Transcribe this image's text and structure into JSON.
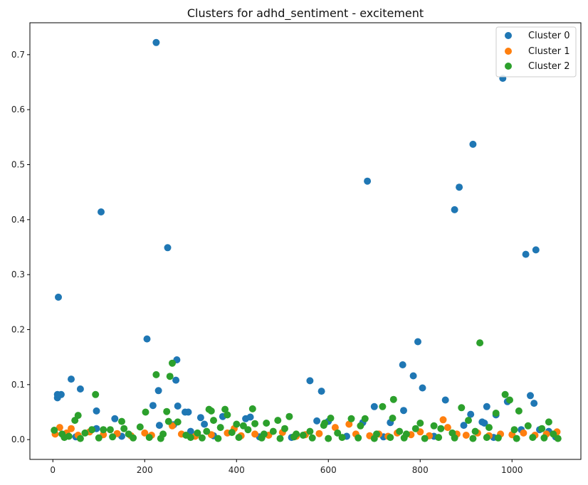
{
  "chart_data": {
    "type": "scatter",
    "title": "Clusters for adhd_sentiment - excitement",
    "xlabel": "",
    "ylabel": "",
    "xlim": [
      -50,
      1150
    ],
    "ylim": [
      -0.036,
      0.758
    ],
    "x_ticks": [
      0,
      200,
      400,
      600,
      800,
      1000
    ],
    "y_ticks": [
      0.0,
      0.1,
      0.2,
      0.3,
      0.4,
      0.5,
      0.6,
      0.7
    ],
    "x_tick_labels": [
      "0",
      "200",
      "400",
      "600",
      "800",
      "1000"
    ],
    "y_tick_labels": [
      "0.0",
      "0.1",
      "0.2",
      "0.3",
      "0.4",
      "0.5",
      "0.6",
      "0.7"
    ],
    "grid": false,
    "legend_position": "top-right",
    "series": [
      {
        "name": "Cluster 0",
        "color": "#1f77b4",
        "points": [
          [
            10,
            0.076
          ],
          [
            10,
            0.082
          ],
          [
            12,
            0.259
          ],
          [
            18,
            0.082
          ],
          [
            40,
            0.11
          ],
          [
            60,
            0.092
          ],
          [
            95,
            0.052
          ],
          [
            95,
            0.02
          ],
          [
            105,
            0.414
          ],
          [
            135,
            0.038
          ],
          [
            205,
            0.183
          ],
          [
            218,
            0.062
          ],
          [
            225,
            0.722
          ],
          [
            230,
            0.089
          ],
          [
            232,
            0.026
          ],
          [
            250,
            0.349
          ],
          [
            263,
            0.027
          ],
          [
            268,
            0.108
          ],
          [
            270,
            0.145
          ],
          [
            272,
            0.061
          ],
          [
            288,
            0.05
          ],
          [
            295,
            0.05
          ],
          [
            300,
            0.015
          ],
          [
            322,
            0.04
          ],
          [
            330,
            0.028
          ],
          [
            370,
            0.042
          ],
          [
            420,
            0.038
          ],
          [
            430,
            0.041
          ],
          [
            560,
            0.107
          ],
          [
            575,
            0.034
          ],
          [
            585,
            0.088
          ],
          [
            600,
            0.033
          ],
          [
            675,
            0.031
          ],
          [
            685,
            0.47
          ],
          [
            700,
            0.06
          ],
          [
            735,
            0.031
          ],
          [
            762,
            0.136
          ],
          [
            764,
            0.053
          ],
          [
            785,
            0.116
          ],
          [
            795,
            0.178
          ],
          [
            805,
            0.094
          ],
          [
            855,
            0.072
          ],
          [
            875,
            0.418
          ],
          [
            885,
            0.459
          ],
          [
            895,
            0.026
          ],
          [
            910,
            0.046
          ],
          [
            915,
            0.537
          ],
          [
            935,
            0.032
          ],
          [
            940,
            0.03
          ],
          [
            945,
            0.06
          ],
          [
            965,
            0.045
          ],
          [
            980,
            0.657
          ],
          [
            990,
            0.069
          ],
          [
            1020,
            0.018
          ],
          [
            1030,
            0.337
          ],
          [
            1040,
            0.08
          ],
          [
            1048,
            0.066
          ],
          [
            1052,
            0.345
          ],
          [
            1060,
            0.018
          ],
          [
            1080,
            0.015
          ],
          [
            50,
            0.005
          ],
          [
            150,
            0.006
          ],
          [
            350,
            0.007
          ],
          [
            450,
            0.005
          ],
          [
            520,
            0.004
          ],
          [
            640,
            0.006
          ],
          [
            720,
            0.005
          ],
          [
            830,
            0.006
          ],
          [
            960,
            0.004
          ],
          [
            1095,
            0.005
          ]
        ]
      },
      {
        "name": "Cluster 1",
        "color": "#ff7f0e",
        "points": [
          [
            5,
            0.01
          ],
          [
            15,
            0.022
          ],
          [
            30,
            0.012
          ],
          [
            40,
            0.02
          ],
          [
            55,
            0.008
          ],
          [
            80,
            0.014
          ],
          [
            110,
            0.009
          ],
          [
            140,
            0.011
          ],
          [
            170,
            0.007
          ],
          [
            200,
            0.012
          ],
          [
            215,
            0.008
          ],
          [
            260,
            0.025
          ],
          [
            280,
            0.01
          ],
          [
            310,
            0.006
          ],
          [
            345,
            0.009
          ],
          [
            380,
            0.012
          ],
          [
            395,
            0.02
          ],
          [
            410,
            0.007
          ],
          [
            440,
            0.01
          ],
          [
            470,
            0.008
          ],
          [
            500,
            0.013
          ],
          [
            530,
            0.006
          ],
          [
            550,
            0.009
          ],
          [
            580,
            0.011
          ],
          [
            615,
            0.022
          ],
          [
            645,
            0.028
          ],
          [
            660,
            0.01
          ],
          [
            690,
            0.007
          ],
          [
            710,
            0.01
          ],
          [
            730,
            0.006
          ],
          [
            750,
            0.012
          ],
          [
            780,
            0.009
          ],
          [
            800,
            0.014
          ],
          [
            820,
            0.007
          ],
          [
            850,
            0.036
          ],
          [
            860,
            0.022
          ],
          [
            880,
            0.01
          ],
          [
            900,
            0.008
          ],
          [
            925,
            0.012
          ],
          [
            950,
            0.007
          ],
          [
            975,
            0.01
          ],
          [
            1000,
            0.009
          ],
          [
            1025,
            0.012
          ],
          [
            1050,
            0.008
          ],
          [
            1075,
            0.01
          ],
          [
            1098,
            0.014
          ]
        ]
      },
      {
        "name": "Cluster 2",
        "color": "#2ca02c",
        "points": [
          [
            3,
            0.017
          ],
          [
            20,
            0.01
          ],
          [
            35,
            0.006
          ],
          [
            48,
            0.035
          ],
          [
            55,
            0.044
          ],
          [
            70,
            0.012
          ],
          [
            85,
            0.018
          ],
          [
            93,
            0.082
          ],
          [
            110,
            0.018
          ],
          [
            125,
            0.018
          ],
          [
            150,
            0.033
          ],
          [
            155,
            0.02
          ],
          [
            165,
            0.01
          ],
          [
            190,
            0.023
          ],
          [
            202,
            0.05
          ],
          [
            225,
            0.118
          ],
          [
            240,
            0.01
          ],
          [
            248,
            0.051
          ],
          [
            252,
            0.033
          ],
          [
            255,
            0.115
          ],
          [
            260,
            0.139
          ],
          [
            272,
            0.032
          ],
          [
            290,
            0.008
          ],
          [
            315,
            0.012
          ],
          [
            335,
            0.015
          ],
          [
            340,
            0.055
          ],
          [
            345,
            0.052
          ],
          [
            350,
            0.035
          ],
          [
            365,
            0.022
          ],
          [
            375,
            0.055
          ],
          [
            380,
            0.045
          ],
          [
            390,
            0.013
          ],
          [
            400,
            0.028
          ],
          [
            415,
            0.025
          ],
          [
            425,
            0.018
          ],
          [
            435,
            0.056
          ],
          [
            440,
            0.029
          ],
          [
            460,
            0.01
          ],
          [
            465,
            0.03
          ],
          [
            480,
            0.015
          ],
          [
            490,
            0.035
          ],
          [
            505,
            0.02
          ],
          [
            515,
            0.042
          ],
          [
            530,
            0.01
          ],
          [
            545,
            0.008
          ],
          [
            560,
            0.015
          ],
          [
            590,
            0.026
          ],
          [
            592,
            0.03
          ],
          [
            605,
            0.039
          ],
          [
            620,
            0.012
          ],
          [
            650,
            0.038
          ],
          [
            670,
            0.025
          ],
          [
            680,
            0.038
          ],
          [
            705,
            0.01
          ],
          [
            718,
            0.06
          ],
          [
            740,
            0.039
          ],
          [
            742,
            0.073
          ],
          [
            755,
            0.015
          ],
          [
            770,
            0.01
          ],
          [
            790,
            0.02
          ],
          [
            800,
            0.03
          ],
          [
            830,
            0.025
          ],
          [
            845,
            0.02
          ],
          [
            870,
            0.012
          ],
          [
            890,
            0.058
          ],
          [
            905,
            0.035
          ],
          [
            920,
            0.015
          ],
          [
            930,
            0.176
          ],
          [
            950,
            0.022
          ],
          [
            965,
            0.048
          ],
          [
            985,
            0.082
          ],
          [
            995,
            0.072
          ],
          [
            1005,
            0.018
          ],
          [
            1015,
            0.052
          ],
          [
            1035,
            0.025
          ],
          [
            1065,
            0.02
          ],
          [
            1080,
            0.032
          ],
          [
            1090,
            0.01
          ],
          [
            1100,
            0.002
          ],
          [
            25,
            0.004
          ],
          [
            60,
            0.002
          ],
          [
            100,
            0.003
          ],
          [
            130,
            0.005
          ],
          [
            175,
            0.003
          ],
          [
            210,
            0.004
          ],
          [
            235,
            0.002
          ],
          [
            300,
            0.004
          ],
          [
            325,
            0.003
          ],
          [
            360,
            0.002
          ],
          [
            405,
            0.004
          ],
          [
            455,
            0.003
          ],
          [
            495,
            0.002
          ],
          [
            525,
            0.005
          ],
          [
            565,
            0.003
          ],
          [
            600,
            0.002
          ],
          [
            630,
            0.004
          ],
          [
            665,
            0.003
          ],
          [
            700,
            0.002
          ],
          [
            735,
            0.004
          ],
          [
            765,
            0.003
          ],
          [
            810,
            0.002
          ],
          [
            840,
            0.004
          ],
          [
            875,
            0.003
          ],
          [
            915,
            0.002
          ],
          [
            945,
            0.004
          ],
          [
            970,
            0.003
          ],
          [
            1010,
            0.002
          ],
          [
            1045,
            0.004
          ],
          [
            1070,
            0.003
          ]
        ]
      }
    ]
  }
}
